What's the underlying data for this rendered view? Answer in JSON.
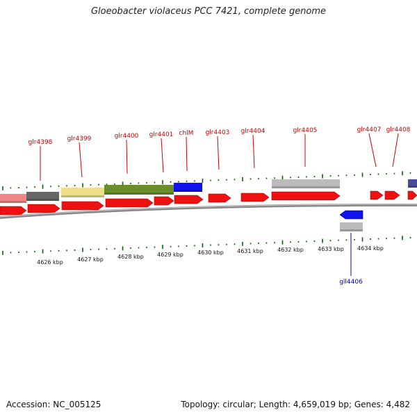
{
  "title": "Gloeobacter violaceus PCC 7421, complete genome",
  "footer": {
    "accession": "Accession: NC_005125",
    "summary": "Topology: circular; Length: 4,659,019 bp; Genes: 4,482"
  },
  "colors": {
    "forward_cds": "#ee1111",
    "reverse_cds": "#1111ee",
    "forward_label": "#cc0000",
    "reverse_label": "#0000aa",
    "backbone": "#777777",
    "tick": "#006600",
    "pink": "#ee8888",
    "dark_gray": "#666666",
    "khaki": "#eee08a",
    "olive": "#6a8f2a",
    "blue": "#1111ee",
    "light_gray": "#bbbbbb",
    "navy": "#4a4a9a"
  },
  "kbp_labels": [
    "4626 kbp",
    "4627 kbp",
    "4628 kbp",
    "4629 kbp",
    "4630 kbp",
    "4631 kbp",
    "4632 kbp",
    "4633 kbp",
    "4634 kbp"
  ],
  "gene_labels_forward": [
    "glr4398",
    "glr4399",
    "glr4400",
    "glr4401",
    "chlM",
    "glr4403",
    "glr4404",
    "glr4405",
    "glr4407",
    "glr4408"
  ],
  "gene_labels_reverse": [
    "gll4406"
  ]
}
